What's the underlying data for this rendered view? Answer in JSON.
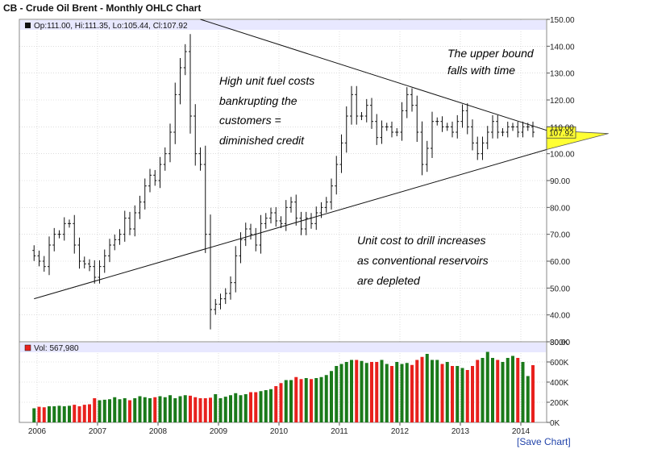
{
  "header": {
    "title": "CB - Crude Oil Brent - Monthly OHLC Chart"
  },
  "footer": {
    "save_label": "[Save Chart]"
  },
  "price_legend": {
    "label": "Op:111.00, Hi:111.35, Lo:105.44, Cl:107.92"
  },
  "volume_legend": {
    "label": "Vol: 567,980"
  },
  "last_price": {
    "label": "107.92",
    "value": 107.92,
    "color": "#ffff33"
  },
  "annotations": [
    "High unit fuel costs",
    "bankrupting the",
    "customers =",
    "diminished credit",
    "The upper bound",
    "falls with time",
    "Unit cost to drill increases",
    "as conventional reservoirs",
    "are depleted"
  ],
  "colors": {
    "up": "#1a7a1a",
    "down": "#e8211d",
    "bar": "#111111",
    "grid": "#c8c8c8",
    "header_band": "#e8e8ff"
  },
  "chart_data": [
    {
      "type": "ohlc",
      "title": "CB - Crude Oil Brent - Monthly OHLC Chart",
      "y_axis_position": "right",
      "ylim": [
        30,
        150
      ],
      "yticks": [
        "150.00",
        "140.00",
        "130.00",
        "120.00",
        "110.00",
        "100.00",
        "90.00",
        "80.00",
        "70.00",
        "60.00",
        "50.00",
        "40.00",
        "30.00"
      ],
      "x_ticks": [
        "2006",
        "2007",
        "2008",
        "2009",
        "2010",
        "2011",
        "2012",
        "2013",
        "2014"
      ],
      "x_tick_values": [
        2006,
        2007,
        2008,
        2009,
        2010,
        2011,
        2012,
        2013,
        2014
      ],
      "x_start": 2005.95,
      "close": [
        62,
        60,
        58,
        66,
        70,
        70,
        74,
        74,
        66,
        60,
        59,
        58,
        54,
        58,
        62,
        66,
        68,
        70,
        76,
        72,
        78,
        82,
        88,
        92,
        90,
        96,
        100,
        108,
        122,
        132,
        138,
        114,
        100,
        96,
        70,
        42,
        44,
        46,
        48,
        52,
        62,
        68,
        72,
        70,
        66,
        74,
        76,
        78,
        75,
        74,
        80,
        82,
        76,
        72,
        76,
        74,
        78,
        80,
        82,
        88,
        96,
        104,
        114,
        122,
        114,
        114,
        118,
        112,
        106,
        110,
        110,
        108,
        108,
        116,
        122,
        118,
        108,
        96,
        102,
        112,
        112,
        110,
        110,
        108,
        112,
        116,
        110,
        104,
        100,
        104,
        108,
        112,
        108,
        108,
        110,
        110,
        108,
        110,
        110,
        108
      ],
      "trendlines": [
        {
          "name": "upper bound",
          "from": [
            2008.7,
            150
          ],
          "to": [
            2014.8,
            106
          ]
        },
        {
          "name": "lower bound",
          "from": [
            2005.95,
            46
          ],
          "to": [
            2014.8,
            104
          ]
        }
      ],
      "triangle_apex": [
        2015.45,
        107.5
      ],
      "last": 107.92,
      "grid": true
    },
    {
      "type": "bar",
      "title": "Volume",
      "ylim": [
        0,
        800000
      ],
      "yticks": [
        "800K",
        "600K",
        "400K",
        "200K",
        "0K"
      ],
      "values": [
        140,
        155,
        150,
        160,
        160,
        165,
        160,
        165,
        175,
        160,
        175,
        180,
        240,
        220,
        225,
        230,
        250,
        230,
        240,
        220,
        240,
        260,
        250,
        240,
        250,
        260,
        250,
        270,
        240,
        260,
        270,
        265,
        250,
        240,
        240,
        245,
        280,
        240,
        255,
        270,
        290,
        270,
        280,
        300,
        300,
        310,
        320,
        330,
        360,
        390,
        420,
        420,
        450,
        430,
        440,
        430,
        440,
        450,
        470,
        510,
        560,
        580,
        600,
        620,
        620,
        610,
        590,
        600,
        600,
        620,
        580,
        560,
        600,
        580,
        590,
        570,
        620,
        650,
        680,
        620,
        620,
        580,
        600,
        560,
        560,
        540,
        520,
        560,
        620,
        640,
        700,
        640,
        620,
        600,
        640,
        660,
        640,
        600,
        460,
        568
      ],
      "up_color": "#1a7a1a",
      "down_color": "#e8211d",
      "last": 567980
    }
  ]
}
